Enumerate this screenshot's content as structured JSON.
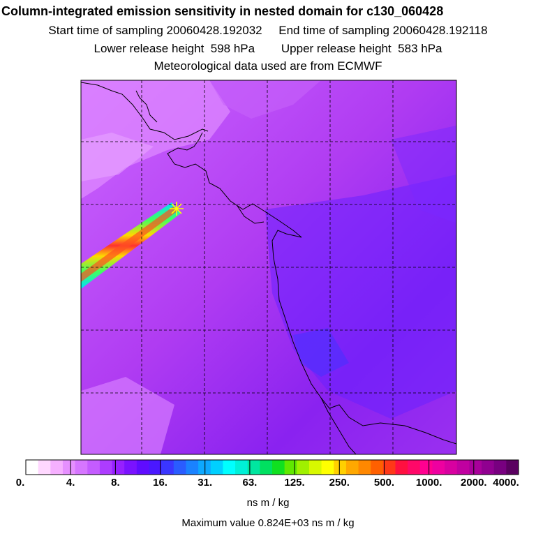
{
  "header": {
    "title": "Column-integrated emission sensitivity in nested domain for c130_060428",
    "start_label": "Start time of sampling 20060428.192032",
    "end_label": "End time of sampling 20060428.192118",
    "lower_label": "Lower release height  598 hPa",
    "upper_label": "Upper release height  583 hPa",
    "met_label": "Meteorological data used are from ECMWF"
  },
  "colorbar": {
    "tick_labels": [
      "0.",
      "4.",
      "8.",
      "16.",
      "31.",
      "63.",
      "125.",
      "250.",
      "500.",
      "1000.",
      "2000.",
      "4000."
    ],
    "colors": [
      "#ffffff",
      "#ffd8ff",
      "#f6b0ff",
      "#e690ff",
      "#d676ff",
      "#c45cff",
      "#ad3cff",
      "#9620ff",
      "#7a12ff",
      "#5f0cff",
      "#4a18ff",
      "#3a36ff",
      "#2a5cff",
      "#1a82ff",
      "#0da8ff",
      "#00d0ff",
      "#00ffff",
      "#00f0d8",
      "#00e6a0",
      "#00e060",
      "#10e020",
      "#60e800",
      "#a0f000",
      "#d8f800",
      "#ffff00",
      "#ffd000",
      "#ffa800",
      "#ff8800",
      "#ff6000",
      "#ff3818",
      "#ff1040",
      "#ff0868",
      "#ff0090",
      "#ee00a0",
      "#d800a0",
      "#c000a0",
      "#a8009a",
      "#900090",
      "#780080",
      "#5a0060"
    ],
    "unit_label": "ns m / kg"
  },
  "footer": {
    "max_label": "Maximum value  0.824E+03 ns m / kg"
  },
  "colors": {
    "background_field": "#bb44ee",
    "plume_core": "#ff3030",
    "release_marker": "#ffff00"
  }
}
